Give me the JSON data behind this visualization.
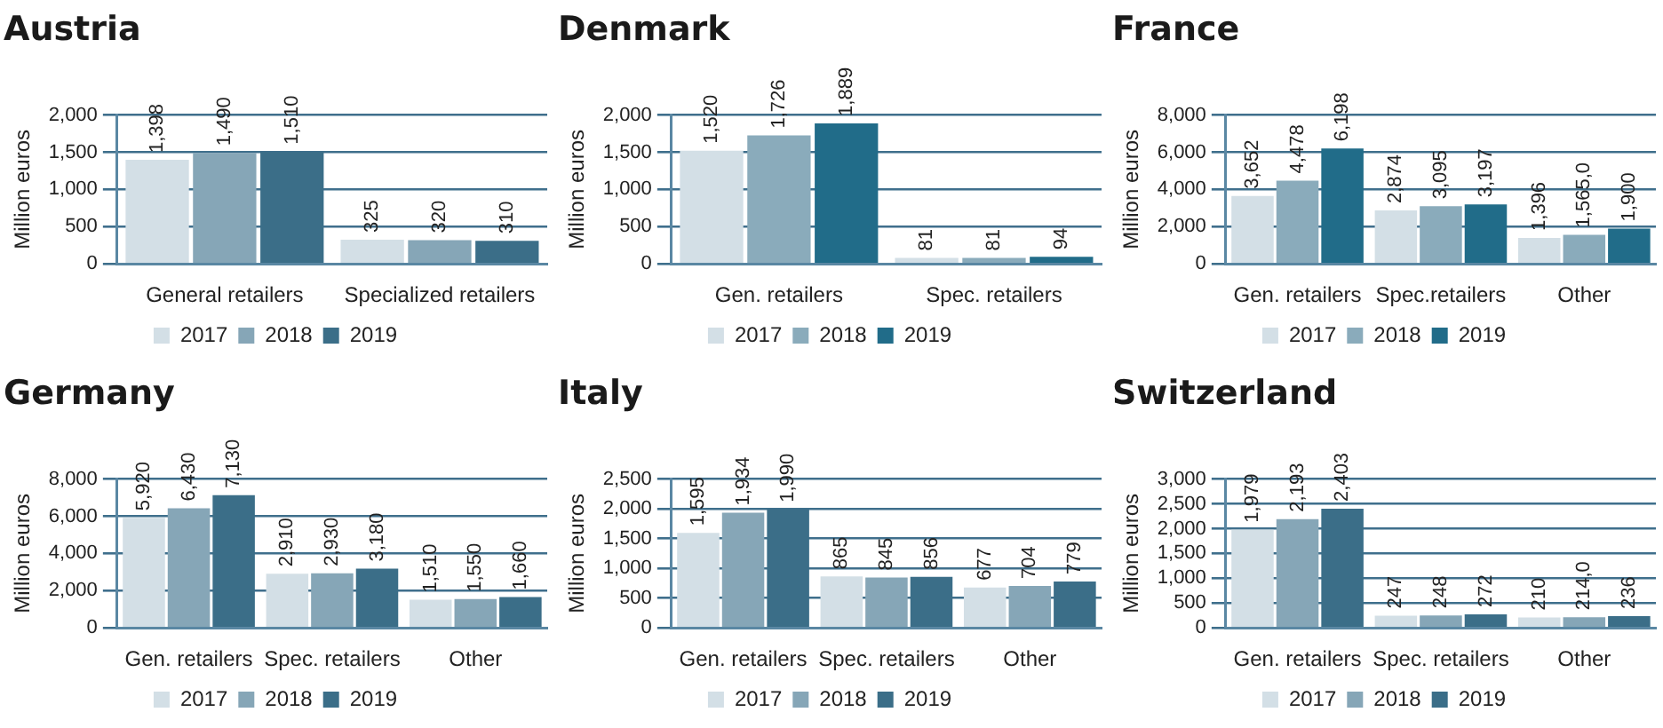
{
  "chart_data": [
    {
      "type": "bar",
      "title": "Austria",
      "ylabel": "Million euros",
      "categories": [
        "General retailers",
        "Specialized retailers"
      ],
      "ylim": [
        0,
        2000
      ],
      "yticks": [
        {
          "value": 0,
          "label": "0"
        },
        {
          "value": 500,
          "label": "500"
        },
        {
          "value": 1000,
          "label": "1,000"
        },
        {
          "value": 1500,
          "label": "1,500"
        },
        {
          "value": 2000,
          "label": "2,000"
        }
      ],
      "grid": "y",
      "legend": "bottom",
      "series": [
        {
          "name": "2017",
          "color": "#d3dfe6",
          "values": [
            1398,
            325
          ],
          "value_labels": [
            "1,398",
            "325"
          ]
        },
        {
          "name": "2018",
          "color": "#86a6b7",
          "values": [
            1490,
            320
          ],
          "value_labels": [
            "1,490",
            "320"
          ]
        },
        {
          "name": "2019",
          "color": "#3b6e88",
          "values": [
            1510,
            310
          ],
          "value_labels": [
            "1,510",
            "310"
          ]
        }
      ]
    },
    {
      "type": "bar",
      "title": "Denmark",
      "ylabel": "Million euros",
      "categories": [
        "Gen. retailers",
        "Spec. retailers"
      ],
      "ylim": [
        0,
        2000
      ],
      "yticks": [
        {
          "value": 0,
          "label": "0"
        },
        {
          "value": 500,
          "label": "500"
        },
        {
          "value": 1000,
          "label": "1,000"
        },
        {
          "value": 1500,
          "label": "1,500"
        },
        {
          "value": 2000,
          "label": "2,000"
        }
      ],
      "grid": "y",
      "legend": "bottom",
      "series": [
        {
          "name": "2017",
          "color": "#d3dfe6",
          "values": [
            1520,
            81
          ],
          "value_labels": [
            "1,520",
            "81"
          ]
        },
        {
          "name": "2018",
          "color": "#8aabbb",
          "values": [
            1726,
            81
          ],
          "value_labels": [
            "1,726",
            "81"
          ]
        },
        {
          "name": "2019",
          "color": "#216c89",
          "values": [
            1889,
            94
          ],
          "value_labels": [
            "1,889",
            "94"
          ]
        }
      ]
    },
    {
      "type": "bar",
      "title": "France",
      "ylabel": "Million euros",
      "categories": [
        "Gen. retailers",
        "Spec.retailers",
        "Other"
      ],
      "ylim": [
        0,
        8000
      ],
      "yticks": [
        {
          "value": 0,
          "label": "0"
        },
        {
          "value": 2000,
          "label": "2,000"
        },
        {
          "value": 4000,
          "label": "4,000"
        },
        {
          "value": 6000,
          "label": "6,000"
        },
        {
          "value": 8000,
          "label": "8,000"
        }
      ],
      "grid": "y",
      "legend": "bottom",
      "series": [
        {
          "name": "2017",
          "color": "#d3dfe6",
          "values": [
            3652,
            2874,
            1396
          ],
          "value_labels": [
            "3,652",
            "2,874",
            "1,396"
          ]
        },
        {
          "name": "2018",
          "color": "#8aabbb",
          "values": [
            4478,
            3095,
            1565
          ],
          "value_labels": [
            "4,478",
            "3,095",
            "1,565,0"
          ]
        },
        {
          "name": "2019",
          "color": "#216c89",
          "values": [
            6198,
            3197,
            1900
          ],
          "value_labels": [
            "6,198",
            "3,197",
            "1,900"
          ]
        }
      ]
    },
    {
      "type": "bar",
      "title": "Germany",
      "ylabel": "Million euros",
      "categories": [
        "Gen. retailers",
        "Spec. retailers",
        "Other"
      ],
      "ylim": [
        0,
        8000
      ],
      "yticks": [
        {
          "value": 0,
          "label": "0"
        },
        {
          "value": 2000,
          "label": "2,000"
        },
        {
          "value": 4000,
          "label": "4,000"
        },
        {
          "value": 6000,
          "label": "6,000"
        },
        {
          "value": 8000,
          "label": "8,000"
        }
      ],
      "grid": "y",
      "legend": "bottom",
      "series": [
        {
          "name": "2017",
          "color": "#d3dfe6",
          "values": [
            5920,
            2910,
            1510
          ],
          "value_labels": [
            "5,920",
            "2,910",
            "1,510"
          ]
        },
        {
          "name": "2018",
          "color": "#86a6b7",
          "values": [
            6430,
            2930,
            1550
          ],
          "value_labels": [
            "6,430",
            "2,930",
            "1,550"
          ]
        },
        {
          "name": "2019",
          "color": "#3b6e88",
          "values": [
            7130,
            3180,
            1660
          ],
          "value_labels": [
            "7,130",
            "3,180",
            "1,660"
          ]
        }
      ]
    },
    {
      "type": "bar",
      "title": "Italy",
      "ylabel": "Million euros",
      "categories": [
        "Gen. retailers",
        "Spec. retailers",
        "Other"
      ],
      "ylim": [
        0,
        2500
      ],
      "yticks": [
        {
          "value": 0,
          "label": "0"
        },
        {
          "value": 500,
          "label": "500"
        },
        {
          "value": 1000,
          "label": "1,000"
        },
        {
          "value": 1500,
          "label": "1,500"
        },
        {
          "value": 2000,
          "label": "2,000"
        },
        {
          "value": 2500,
          "label": "2,500"
        }
      ],
      "grid": "y",
      "legend": "bottom",
      "series": [
        {
          "name": "2017",
          "color": "#d3dfe6",
          "values": [
            1595,
            865,
            677
          ],
          "value_labels": [
            "1,595",
            "865",
            "677"
          ]
        },
        {
          "name": "2018",
          "color": "#86a6b7",
          "values": [
            1934,
            845,
            704
          ],
          "value_labels": [
            "1,934",
            "845",
            "704"
          ]
        },
        {
          "name": "2019",
          "color": "#3b6e88",
          "values": [
            1990,
            856,
            779
          ],
          "value_labels": [
            "1,990",
            "856",
            "779"
          ]
        }
      ]
    },
    {
      "type": "bar",
      "title": "Switzerland",
      "ylabel": "Million euros",
      "categories": [
        "Gen. retailers",
        "Spec. retailers",
        "Other"
      ],
      "ylim": [
        0,
        3000
      ],
      "yticks": [
        {
          "value": 0,
          "label": "0"
        },
        {
          "value": 500,
          "label": "500"
        },
        {
          "value": 1000,
          "label": "1,000"
        },
        {
          "value": 1500,
          "label": "1,500"
        },
        {
          "value": 2000,
          "label": "2,000"
        },
        {
          "value": 2500,
          "label": "2,500"
        },
        {
          "value": 3000,
          "label": "3,000"
        }
      ],
      "grid": "y",
      "legend": "bottom",
      "series": [
        {
          "name": "2017",
          "color": "#d3dfe6",
          "values": [
            1979,
            247,
            210
          ],
          "value_labels": [
            "1,979",
            "247",
            "210"
          ]
        },
        {
          "name": "2018",
          "color": "#86a6b7",
          "values": [
            2193,
            248,
            214
          ],
          "value_labels": [
            "2,193",
            "248",
            "214,0"
          ]
        },
        {
          "name": "2019",
          "color": "#3b6e88",
          "values": [
            2403,
            272,
            236
          ],
          "value_labels": [
            "2,403",
            "272",
            "236"
          ]
        }
      ]
    }
  ]
}
